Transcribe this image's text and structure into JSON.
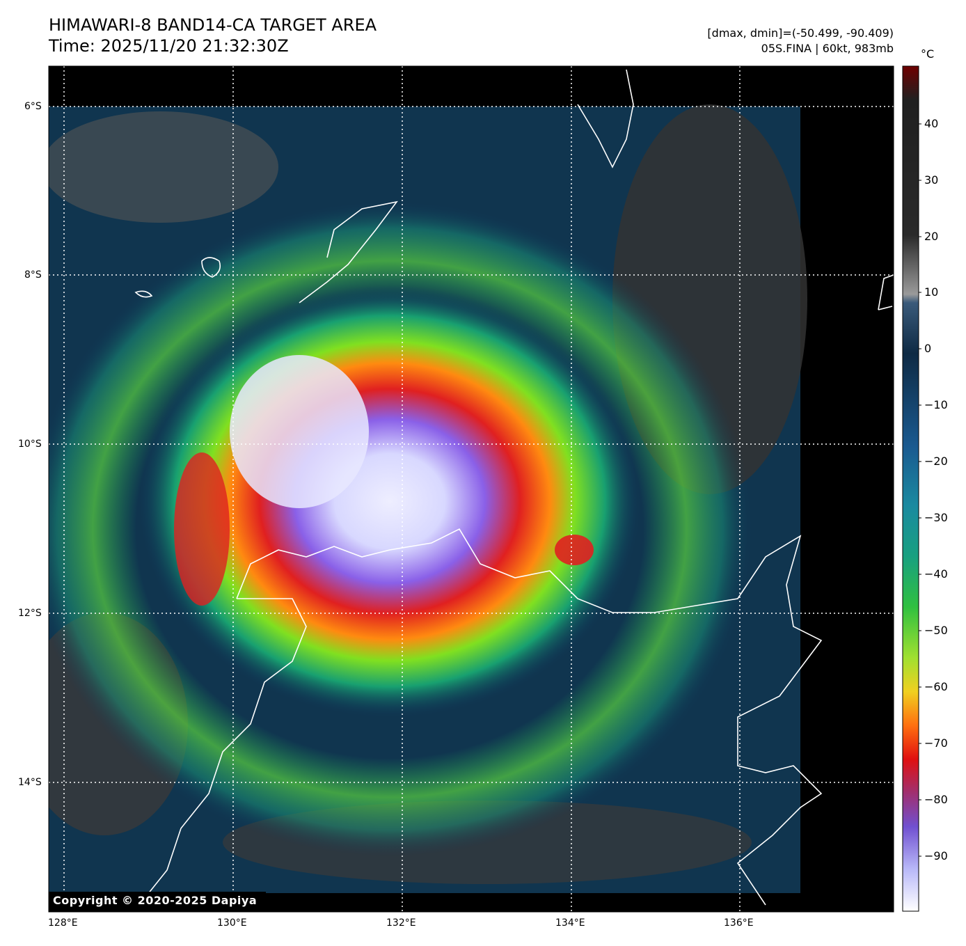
{
  "header": {
    "title_line1": "HIMAWARI-8 BAND14-CA TARGET AREA",
    "title_line2": "Time: 2025/11/20 21:32:30Z",
    "dmax_dmin": "[dmax, dmin]=(-50.499, -90.409)",
    "storm_info": "05S.FINA | 60kt, 983mb"
  },
  "map": {
    "lat_labels": [
      "6°S",
      "8°S",
      "10°S",
      "12°S",
      "14°S"
    ],
    "lon_labels": [
      "128°E",
      "130°E",
      "132°E",
      "134°E",
      "136°E"
    ],
    "copyright": "Copyright © 2020-2025 Dapiya"
  },
  "colorbar": {
    "unit": "°C",
    "ticks": [
      "40",
      "30",
      "20",
      "10",
      "0",
      "−10",
      "−20",
      "−30",
      "−40",
      "−50",
      "−60",
      "−70",
      "−80",
      "−90"
    ],
    "range": [
      -100,
      50
    ]
  }
}
